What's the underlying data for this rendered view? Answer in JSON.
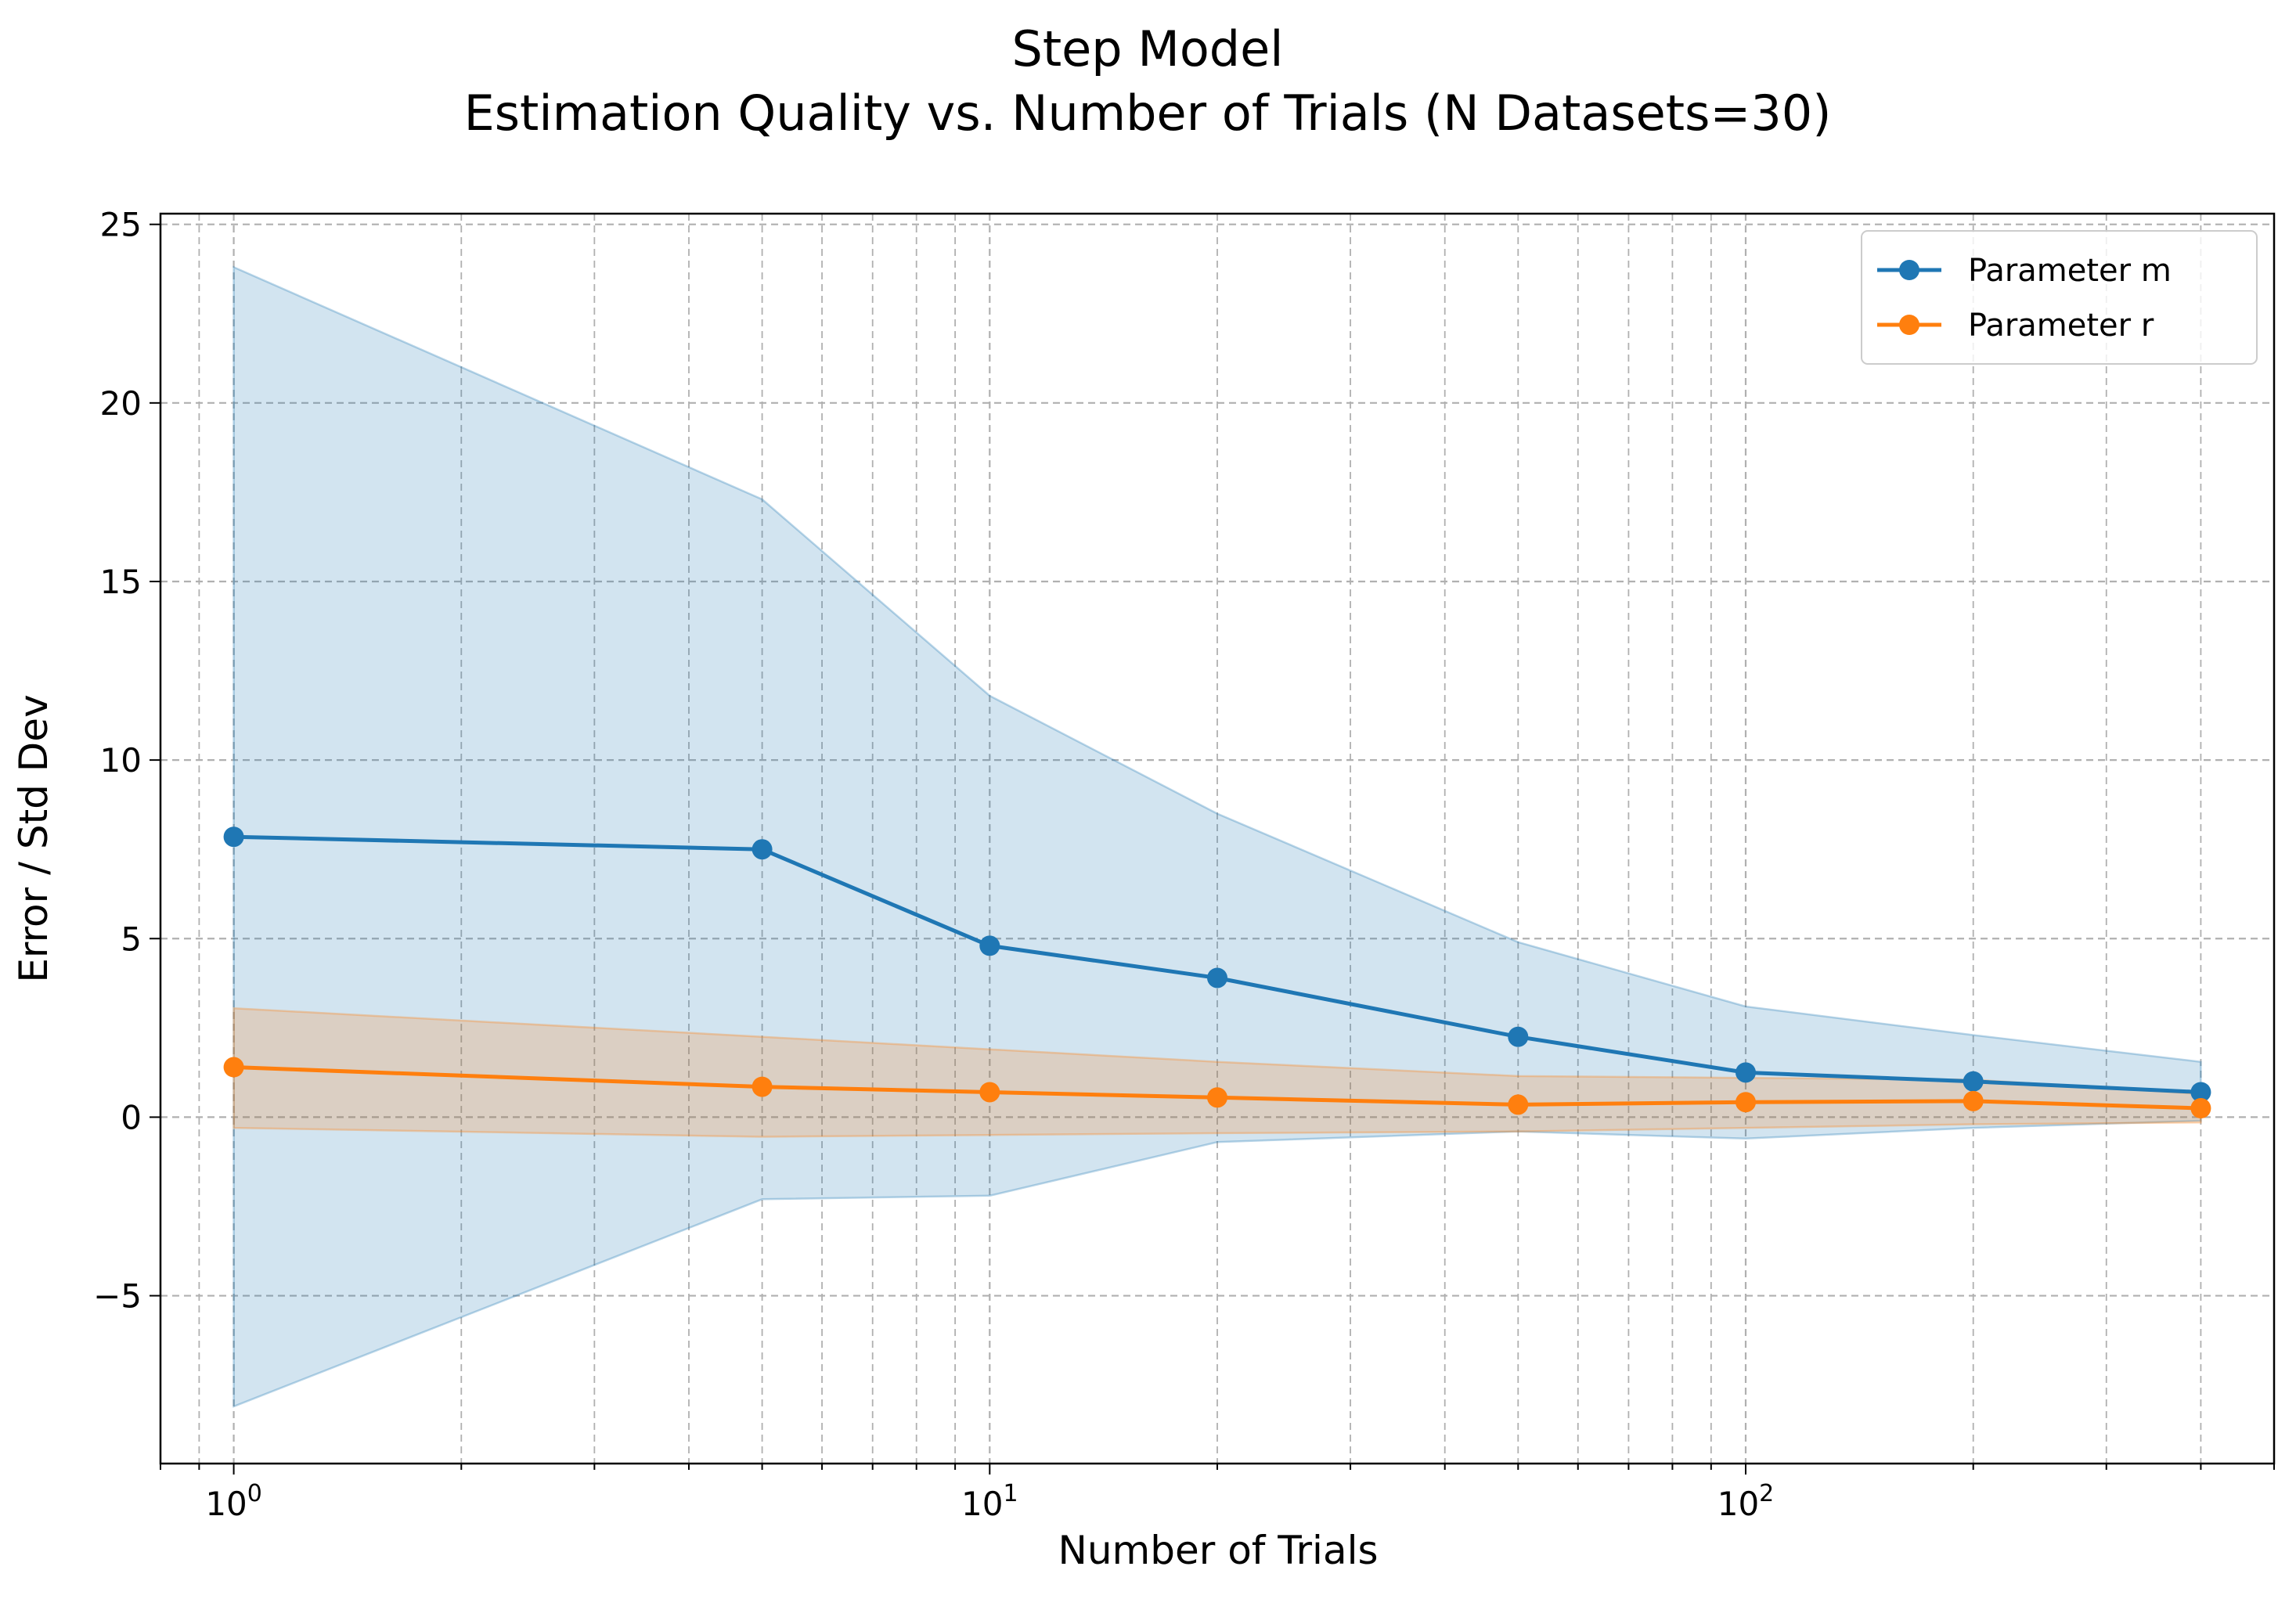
{
  "chart_data": {
    "type": "line",
    "title": "Step Model",
    "subtitle": "Estimation Quality vs. Number of Trials (N Datasets=30)",
    "xlabel": "Number of Trials",
    "ylabel": "Error / Std Dev",
    "x_scale": "log",
    "x": [
      1,
      5,
      10,
      20,
      50,
      100,
      200,
      400
    ],
    "xlim": [
      0.8,
      500
    ],
    "ylim": [
      -9.7,
      25.3
    ],
    "x_ticks": [
      {
        "value": 1,
        "base": "10",
        "exp": "0"
      },
      {
        "value": 10,
        "base": "10",
        "exp": "1"
      },
      {
        "value": 100,
        "base": "10",
        "exp": "2"
      }
    ],
    "y_ticks": [
      {
        "value": -5,
        "label": "−5"
      },
      {
        "value": 0,
        "label": "0"
      },
      {
        "value": 5,
        "label": "5"
      },
      {
        "value": 10,
        "label": "10"
      },
      {
        "value": 15,
        "label": "15"
      },
      {
        "value": 20,
        "label": "20"
      },
      {
        "value": 25,
        "label": "25"
      }
    ],
    "grid": true,
    "legend_position": "top-right",
    "series": [
      {
        "name": "Parameter m",
        "color": "#1f77b4",
        "values": [
          7.85,
          7.5,
          4.8,
          3.9,
          2.25,
          1.25,
          1.0,
          0.7
        ],
        "lower": [
          -8.1,
          -2.3,
          -2.2,
          -0.7,
          -0.4,
          -0.6,
          -0.3,
          -0.1
        ],
        "upper": [
          23.8,
          17.3,
          11.8,
          8.5,
          4.9,
          3.1,
          2.3,
          1.55
        ]
      },
      {
        "name": "Parameter r",
        "color": "#ff7f0e",
        "values": [
          1.4,
          0.85,
          0.7,
          0.55,
          0.35,
          0.42,
          0.45,
          0.25
        ],
        "lower": [
          -0.3,
          -0.55,
          -0.5,
          -0.45,
          -0.4,
          -0.3,
          -0.2,
          -0.15
        ],
        "upper": [
          3.05,
          2.25,
          1.9,
          1.55,
          1.15,
          1.1,
          1.05,
          0.65
        ]
      }
    ]
  }
}
